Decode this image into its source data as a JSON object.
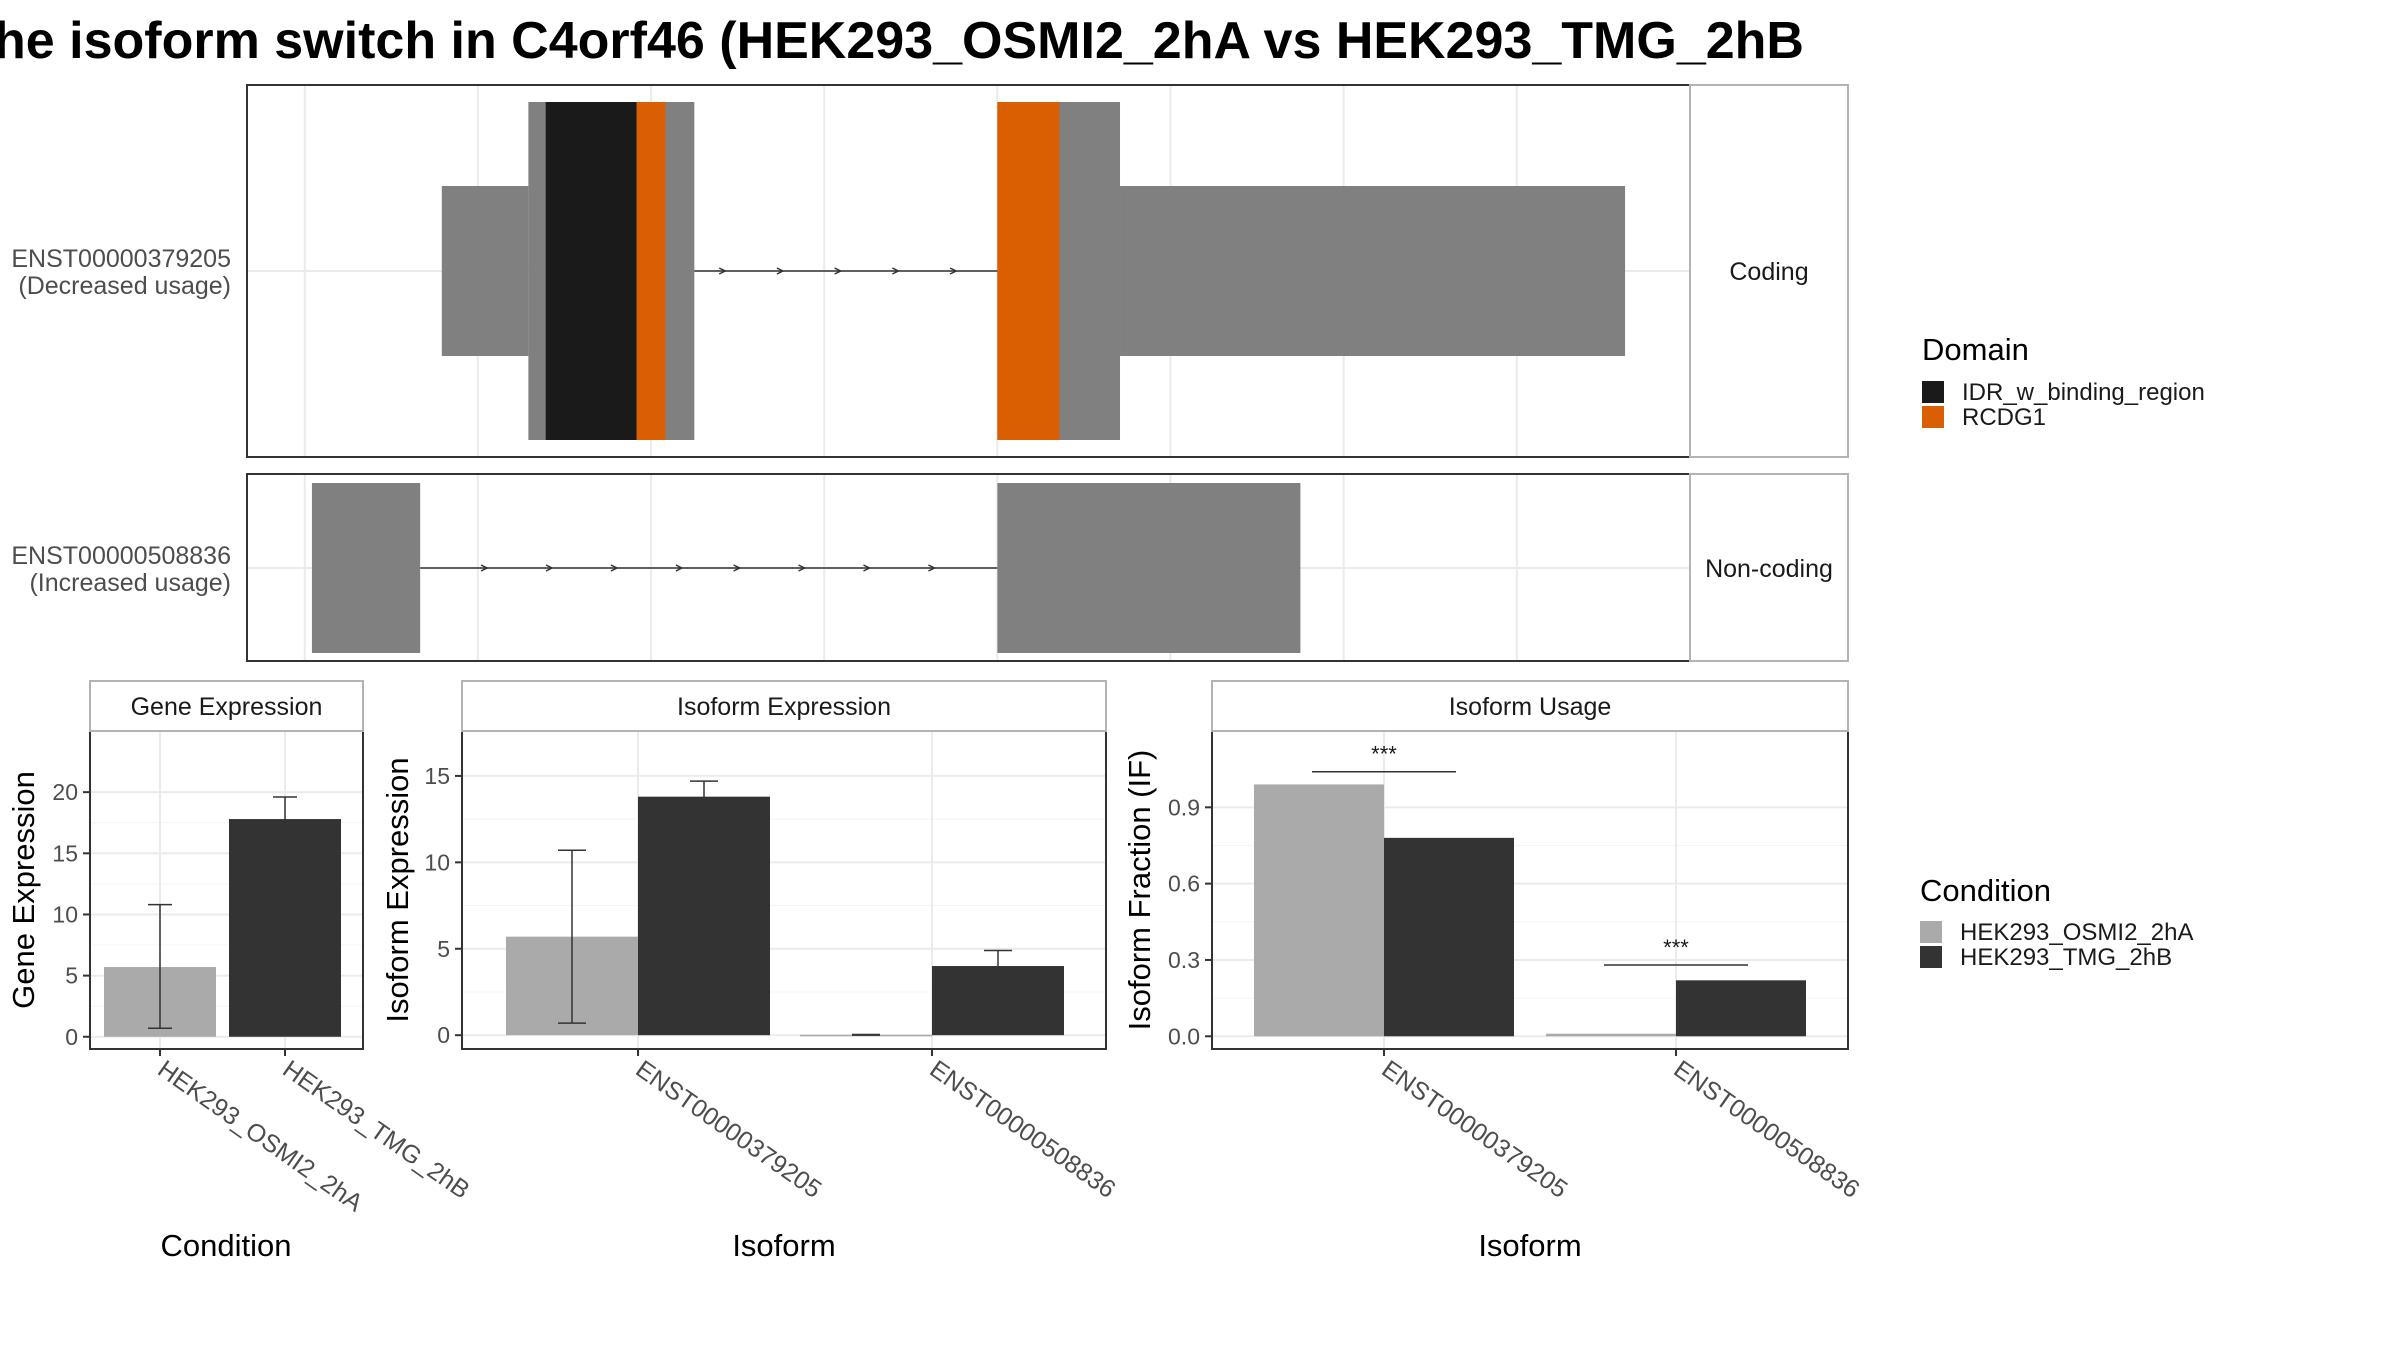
{
  "title": "he isoform switch in C4orf46 (HEK293_OSMI2_2hA vs HEK293_TMG_2hB",
  "colors": {
    "exon": "#808080",
    "idr": "#1a1a1a",
    "rcdg1": "#d95f02",
    "cond_a": "#aaaaaa",
    "cond_b": "#333333",
    "grid": "#ebebeb",
    "frame": "#333333",
    "strip_border": "#b3b3b3"
  },
  "legend_domain": {
    "title": "Domain",
    "items": [
      {
        "label": "IDR_w_binding_region",
        "color": "#1a1a1a"
      },
      {
        "label": "RCDG1",
        "color": "#d95f02"
      }
    ]
  },
  "legend_condition": {
    "title": "Condition",
    "items": [
      {
        "label": "HEK293_OSMI2_2hA",
        "color": "#aaaaaa"
      },
      {
        "label": "HEK293_TMG_2hB",
        "color": "#333333"
      }
    ]
  },
  "chart_data": [
    {
      "type": "gene_structure",
      "name": "transcripts",
      "transcripts": [
        {
          "id": "ENST00000379205",
          "usage": "(Decreased usage)",
          "strip": "Coding",
          "exons": [
            {
              "start": 0.135,
              "end": 0.195,
              "kind": "utr"
            },
            {
              "start": 0.195,
              "end": 0.31,
              "kind": "cds"
            },
            {
              "start": 0.52,
              "end": 0.605,
              "kind": "cds"
            },
            {
              "start": 0.605,
              "end": 0.955,
              "kind": "utr"
            }
          ],
          "domains": [
            {
              "start": 0.207,
              "end": 0.27,
              "label": "IDR_w_binding_region"
            },
            {
              "start": 0.27,
              "end": 0.29,
              "label": "RCDG1"
            },
            {
              "start": 0.52,
              "end": 0.563,
              "label": "RCDG1"
            }
          ],
          "intron_arrows": [
            0.33,
            0.37,
            0.41,
            0.45,
            0.49
          ]
        },
        {
          "id": "ENST00000508836",
          "usage": "(Increased usage)",
          "strip": "Non-coding",
          "exons": [
            {
              "start": 0.045,
              "end": 0.12,
              "kind": "noncoding"
            },
            {
              "start": 0.52,
              "end": 0.73,
              "kind": "noncoding"
            }
          ],
          "domains": [],
          "intron_arrows": [
            0.165,
            0.21,
            0.255,
            0.3,
            0.34,
            0.385,
            0.43,
            0.475
          ]
        }
      ]
    },
    {
      "type": "bar",
      "title": "Gene Expression",
      "xlabel": "Condition",
      "ylabel": "Gene Expression",
      "ylim": [
        -1,
        25
      ],
      "yticks": [
        0,
        5,
        10,
        15,
        20
      ],
      "ytick_labels": [
        "0",
        "5",
        "10",
        "15",
        "20"
      ],
      "categories": [
        "HEK293_OSMI2_2hA",
        "HEK293_TMG_2hB"
      ],
      "values": [
        5.7,
        17.8
      ],
      "errors": [
        [
          0.7,
          10.8
        ],
        [
          16.0,
          19.6
        ]
      ],
      "colors": [
        "#aaaaaa",
        "#333333"
      ]
    },
    {
      "type": "bar",
      "title": "Isoform Expression",
      "xlabel": "Isoform",
      "ylabel": "Isoform Expression",
      "ylim": [
        -0.8,
        17.6
      ],
      "yticks": [
        0,
        5,
        10,
        15
      ],
      "ytick_labels": [
        "0",
        "5",
        "10",
        "15"
      ],
      "categories": [
        "ENST00000379205",
        "ENST00000508836"
      ],
      "series": [
        {
          "name": "HEK293_OSMI2_2hA",
          "values": [
            5.7,
            0.02
          ],
          "errors": [
            [
              0.7,
              10.7
            ],
            [
              0.0,
              0.04
            ]
          ]
        },
        {
          "name": "HEK293_TMG_2hB",
          "values": [
            13.8,
            4.0
          ],
          "errors": [
            [
              12.9,
              14.7
            ],
            [
              3.2,
              4.9
            ]
          ]
        }
      ]
    },
    {
      "type": "bar",
      "title": "Isoform Usage",
      "xlabel": "Isoform",
      "ylabel": "Isoform Fraction (IF)",
      "ylim": [
        -0.05,
        1.2
      ],
      "yticks": [
        0,
        0.3,
        0.6,
        0.9
      ],
      "ytick_labels": [
        "0.0",
        "0.3",
        "0.6",
        "0.9"
      ],
      "categories": [
        "ENST00000379205",
        "ENST00000508836"
      ],
      "series": [
        {
          "name": "HEK293_OSMI2_2hA",
          "values": [
            0.99,
            0.01
          ]
        },
        {
          "name": "HEK293_TMG_2hB",
          "values": [
            0.78,
            0.22
          ]
        }
      ],
      "significance": [
        {
          "category": 0,
          "label": "***",
          "y": 1.04
        },
        {
          "category": 1,
          "label": "***",
          "y": 0.28
        }
      ]
    }
  ]
}
